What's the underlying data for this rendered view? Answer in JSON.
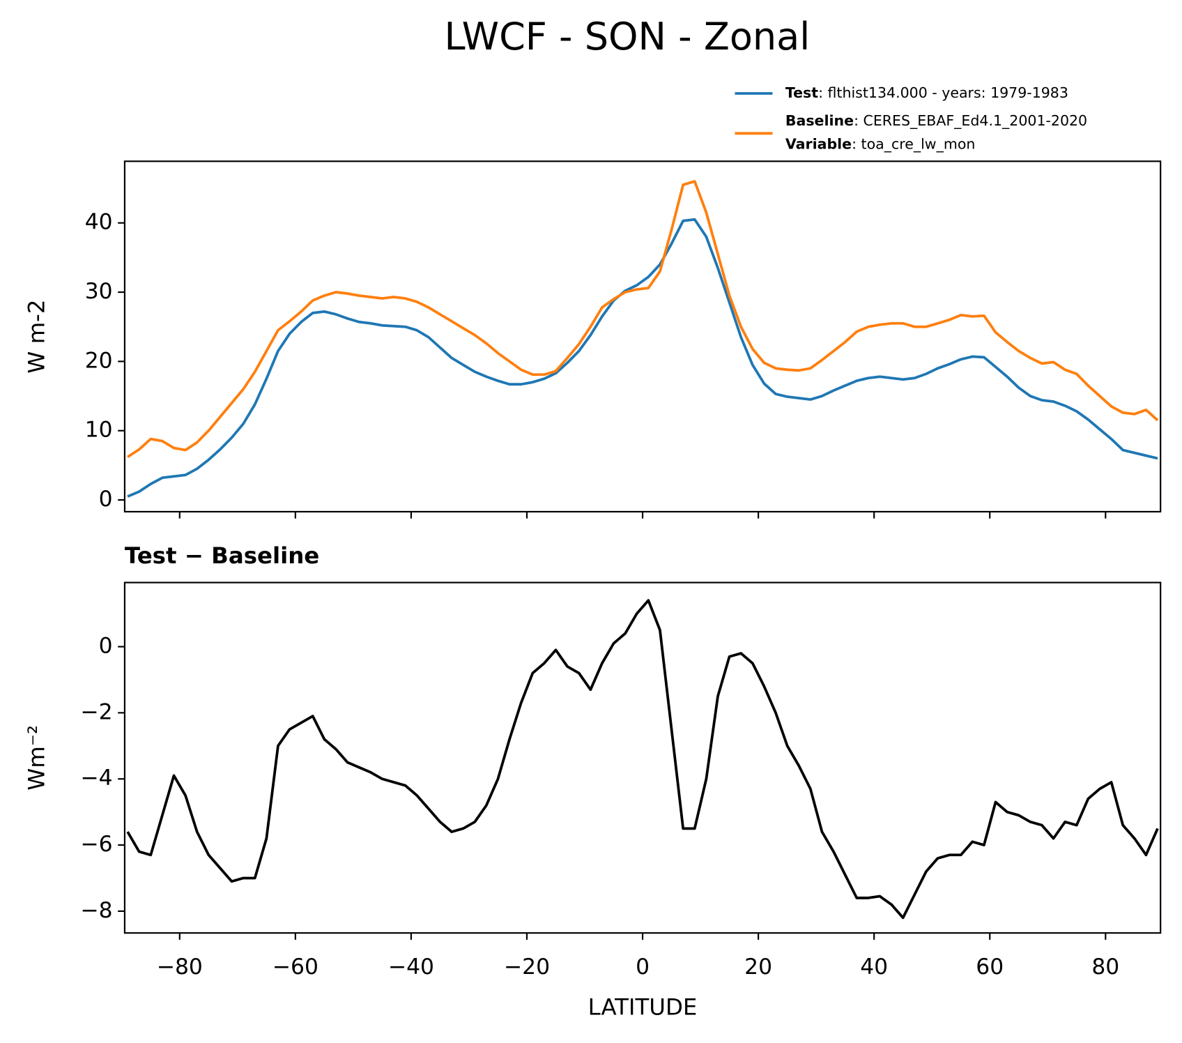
{
  "title": "LWCF - SON - Zonal",
  "chart_data": [
    {
      "type": "line",
      "ylabel": "W m-2",
      "x": [
        -89,
        -87,
        -85,
        -83,
        -81,
        -79,
        -77,
        -75,
        -73,
        -71,
        -69,
        -67,
        -65,
        -63,
        -61,
        -59,
        -57,
        -55,
        -53,
        -51,
        -49,
        -47,
        -45,
        -43,
        -41,
        -39,
        -37,
        -35,
        -33,
        -31,
        -29,
        -27,
        -25,
        -23,
        -21,
        -19,
        -17,
        -15,
        -13,
        -11,
        -9,
        -7,
        -5,
        -3,
        -1,
        1,
        3,
        5,
        7,
        9,
        11,
        13,
        15,
        17,
        19,
        21,
        23,
        25,
        27,
        29,
        31,
        33,
        35,
        37,
        39,
        41,
        43,
        45,
        47,
        49,
        51,
        53,
        55,
        57,
        59,
        61,
        63,
        65,
        67,
        69,
        71,
        73,
        75,
        77,
        79,
        81,
        83,
        85,
        87,
        89
      ],
      "series": [
        {
          "name": "Test",
          "description": ": flthist134.000 - years: 1979-1983",
          "color": "#1f77b4",
          "values": [
            0.5,
            1.2,
            2.3,
            3.2,
            3.4,
            3.6,
            4.5,
            5.8,
            7.3,
            9.0,
            11.0,
            13.8,
            17.5,
            21.5,
            24.0,
            25.7,
            27.0,
            27.2,
            26.8,
            26.2,
            25.7,
            25.5,
            25.2,
            25.1,
            25.0,
            24.5,
            23.5,
            22.0,
            20.5,
            19.5,
            18.5,
            17.8,
            17.2,
            16.7,
            16.7,
            17.0,
            17.5,
            18.3,
            19.8,
            21.5,
            23.8,
            26.5,
            28.8,
            30.2,
            31.0,
            32.2,
            34.0,
            37.0,
            40.3,
            40.5,
            38.0,
            33.5,
            28.5,
            23.5,
            19.5,
            16.8,
            15.3,
            14.9,
            14.7,
            14.5,
            15.0,
            15.8,
            16.5,
            17.2,
            17.6,
            17.8,
            17.6,
            17.4,
            17.6,
            18.2,
            19.0,
            19.6,
            20.3,
            20.7,
            20.6,
            19.2,
            17.8,
            16.2,
            15.0,
            14.4,
            14.2,
            13.6,
            12.8,
            11.6,
            10.2,
            8.8,
            7.2,
            6.8,
            6.4,
            6.0
          ]
        },
        {
          "name": "Baseline",
          "description": ": CERES_EBAF_Ed4.1_2001-2020",
          "variable_label": "Variable",
          "variable": ": toa_cre_lw_mon",
          "color": "#ff7f0e",
          "values": [
            6.2,
            7.3,
            8.8,
            8.5,
            7.5,
            7.2,
            8.3,
            10.0,
            12.0,
            14.0,
            16.0,
            18.5,
            21.5,
            24.5,
            25.8,
            27.2,
            28.8,
            29.5,
            30.0,
            29.8,
            29.5,
            29.3,
            29.1,
            29.3,
            29.1,
            28.6,
            27.8,
            26.8,
            25.8,
            24.8,
            23.8,
            22.6,
            21.2,
            20.0,
            18.8,
            18.1,
            18.1,
            18.6,
            20.5,
            22.5,
            25.0,
            27.8,
            29.0,
            30.0,
            30.4,
            30.6,
            33.0,
            39.0,
            45.5,
            46.0,
            41.5,
            35.5,
            29.5,
            25.0,
            21.8,
            19.8,
            19.0,
            18.8,
            18.7,
            19.0,
            20.2,
            21.5,
            22.8,
            24.3,
            25.0,
            25.3,
            25.5,
            25.5,
            25.0,
            25.0,
            25.5,
            26.0,
            26.7,
            26.5,
            26.6,
            24.2,
            22.8,
            21.5,
            20.5,
            19.7,
            19.9,
            18.8,
            18.2,
            16.5,
            15.0,
            13.5,
            12.6,
            12.4,
            13.0,
            11.5
          ]
        }
      ],
      "xlim": [
        -89.5,
        89.5
      ],
      "xticks": [
        -80,
        -60,
        -40,
        -20,
        0,
        20,
        40,
        60,
        80
      ],
      "show_xtick_labels": false,
      "ylim": [
        -1.7,
        48.9
      ],
      "yticks": [
        0,
        10,
        20,
        30,
        40
      ]
    },
    {
      "type": "line",
      "title": "Test − Baseline",
      "xlabel": "LATITUDE",
      "ylabel": "Wm⁻²",
      "color": "#000000",
      "x": [
        -89,
        -87,
        -85,
        -83,
        -81,
        -79,
        -77,
        -75,
        -73,
        -71,
        -69,
        -67,
        -65,
        -63,
        -61,
        -59,
        -57,
        -55,
        -53,
        -51,
        -49,
        -47,
        -45,
        -43,
        -41,
        -39,
        -37,
        -35,
        -33,
        -31,
        -29,
        -27,
        -25,
        -23,
        -21,
        -19,
        -17,
        -15,
        -13,
        -11,
        -9,
        -7,
        -5,
        -3,
        -1,
        1,
        3,
        5,
        7,
        9,
        11,
        13,
        15,
        17,
        19,
        21,
        23,
        25,
        27,
        29,
        31,
        33,
        35,
        37,
        39,
        41,
        43,
        45,
        47,
        49,
        51,
        53,
        55,
        57,
        59,
        61,
        63,
        65,
        67,
        69,
        71,
        73,
        75,
        77,
        79,
        81,
        83,
        85,
        87,
        89
      ],
      "values": [
        -5.6,
        -6.2,
        -6.3,
        -5.1,
        -3.9,
        -4.5,
        -5.6,
        -6.3,
        -6.7,
        -7.1,
        -7.0,
        -7.0,
        -5.8,
        -3.0,
        -2.5,
        -2.3,
        -2.1,
        -2.8,
        -3.1,
        -3.5,
        -3.65,
        -3.8,
        -4.0,
        -4.1,
        -4.2,
        -4.5,
        -4.9,
        -5.3,
        -5.6,
        -5.5,
        -5.3,
        -4.8,
        -4.0,
        -2.8,
        -1.7,
        -0.8,
        -0.5,
        -0.1,
        -0.6,
        -0.8,
        -1.3,
        -0.5,
        0.1,
        0.4,
        1.0,
        1.4,
        0.5,
        -2.5,
        -5.5,
        -5.5,
        -4.0,
        -1.5,
        -0.3,
        -0.2,
        -0.5,
        -1.2,
        -2.0,
        -3.0,
        -3.6,
        -4.3,
        -5.6,
        -6.2,
        -6.9,
        -7.6,
        -7.6,
        -7.55,
        -7.8,
        -8.2,
        -7.5,
        -6.8,
        -6.4,
        -6.3,
        -6.3,
        -5.9,
        -6.0,
        -4.7,
        -5.0,
        -5.1,
        -5.3,
        -5.4,
        -5.8,
        -5.3,
        -5.4,
        -4.6,
        -4.3,
        -4.1,
        -5.4,
        -5.8,
        -6.3,
        -5.5
      ],
      "xlim": [
        -89.5,
        89.5
      ],
      "xticks": [
        {
          "value": -80,
          "label": "−80"
        },
        {
          "value": -60,
          "label": "−60"
        },
        {
          "value": -40,
          "label": "−40"
        },
        {
          "value": -20,
          "label": "−20"
        },
        0,
        20,
        40,
        60,
        80
      ],
      "show_xtick_labels": true,
      "ylim": [
        -8.66,
        1.94
      ],
      "yticks": [
        {
          "value": -8,
          "label": "−8"
        },
        {
          "value": -6,
          "label": "−6"
        },
        {
          "value": -4,
          "label": "−4"
        },
        {
          "value": -2,
          "label": "−2"
        },
        0
      ]
    }
  ]
}
